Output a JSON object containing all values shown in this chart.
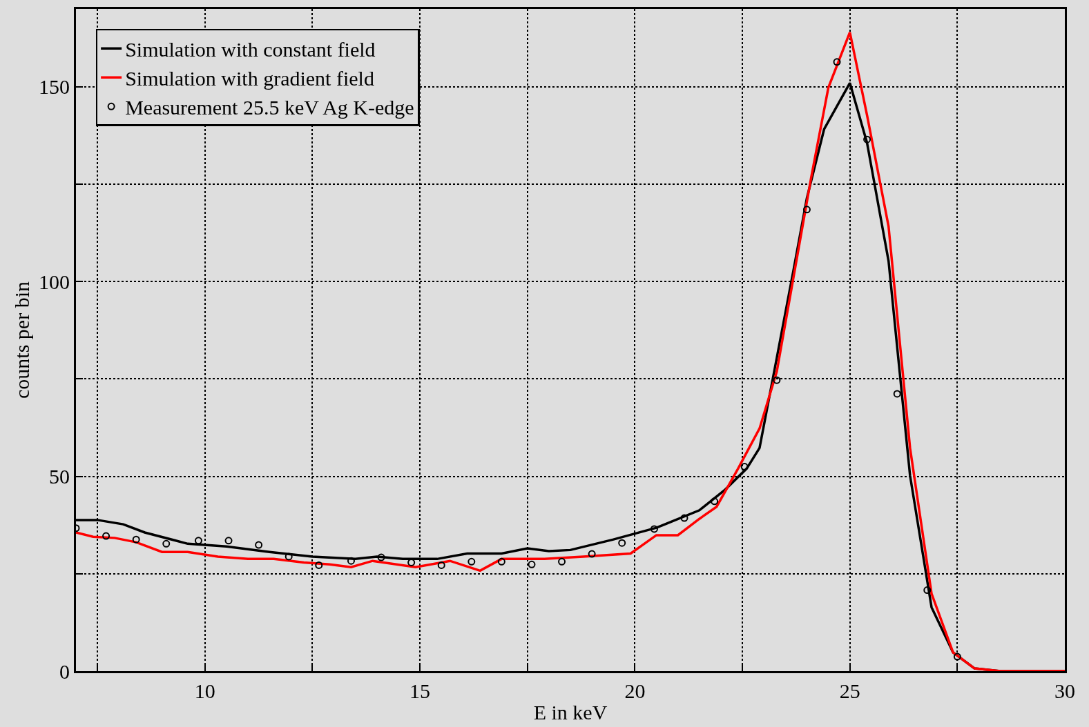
{
  "chart_data": {
    "type": "line",
    "xlabel": "E in keV",
    "ylabel": "counts per bin",
    "xlim": [
      7,
      30
    ],
    "ylim": [
      0,
      170
    ],
    "xticks": [
      {
        "value": 7.5,
        "label": null
      },
      10,
      {
        "value": 12.5,
        "label": null
      },
      15,
      {
        "value": 17.5,
        "label": null
      },
      20,
      {
        "value": 22.5,
        "label": null
      },
      25,
      {
        "value": 27.5,
        "label": null
      },
      30
    ],
    "yticks": [
      0,
      {
        "value": 25,
        "label": null
      },
      50,
      {
        "value": 75,
        "label": null
      },
      100,
      {
        "value": 125,
        "label": null
      },
      150
    ],
    "grid": true,
    "legend": "top left",
    "series": [
      {
        "name": "Simulation with constant field",
        "color": "#000000",
        "x": [
          7.0,
          7.5,
          8.1,
          8.6,
          9.6,
          10.5,
          11.5,
          12.5,
          13.5,
          14.0,
          14.6,
          15.4,
          16.1,
          16.9,
          17.5,
          18.0,
          18.5,
          19.5,
          20.5,
          21.5,
          22.1,
          22.6,
          22.9,
          23.3,
          23.7,
          24.0,
          24.4,
          25.0,
          25.4,
          25.9,
          26.4,
          26.9,
          27.4,
          27.9,
          28.5,
          30.0
        ],
        "values": [
          38.8,
          38.8,
          37.7,
          35.6,
          32.7,
          32.0,
          30.6,
          29.4,
          28.8,
          29.4,
          28.8,
          28.8,
          30.2,
          30.2,
          31.5,
          30.8,
          31.1,
          33.8,
          36.8,
          41.3,
          46.6,
          52.0,
          57.3,
          80.4,
          103.6,
          121.4,
          139.1,
          151.0,
          135.6,
          105.3,
          50.2,
          16.4,
          4.8,
          0.7,
          0,
          0
        ]
      },
      {
        "name": "Simulation with gradient field",
        "color": "#ff0000",
        "x": [
          7.0,
          7.4,
          7.9,
          8.4,
          9.0,
          9.6,
          10.3,
          11.0,
          11.6,
          12.3,
          12.9,
          13.4,
          13.9,
          14.9,
          15.7,
          16.4,
          16.9,
          17.9,
          18.8,
          19.9,
          20.5,
          21.0,
          21.5,
          21.9,
          22.4,
          22.9,
          23.3,
          23.7,
          24.1,
          24.5,
          25.0,
          25.4,
          25.9,
          26.4,
          26.9,
          27.4,
          27.9,
          28.5,
          30.0
        ],
        "values": [
          35.6,
          34.5,
          34.2,
          33.1,
          30.6,
          30.6,
          29.4,
          28.8,
          28.8,
          27.9,
          27.4,
          26.7,
          28.3,
          26.7,
          28.3,
          25.8,
          28.8,
          28.8,
          29.4,
          30.2,
          34.9,
          34.9,
          39.1,
          42.2,
          52.0,
          62.3,
          76.9,
          101.8,
          126.7,
          149.8,
          164.0,
          142.7,
          114.2,
          57.3,
          19.9,
          4.8,
          0.7,
          0,
          0
        ]
      },
      {
        "name": "Measurement 25.5 keV Ag K-edge",
        "color": "#000000",
        "type": "scatter",
        "marker": "circle",
        "x": [
          7.0,
          7.7,
          8.4,
          9.1,
          9.85,
          10.55,
          11.25,
          11.95,
          12.65,
          13.4,
          14.1,
          14.8,
          15.5,
          16.2,
          16.9,
          17.6,
          18.3,
          19.0,
          19.7,
          20.45,
          21.15,
          21.85,
          22.55,
          23.3,
          24.0,
          24.7,
          25.4,
          26.1,
          26.8,
          27.5
        ],
        "values": [
          36.7,
          34.7,
          33.8,
          32.7,
          33.5,
          33.5,
          32.4,
          29.4,
          27.2,
          28.3,
          29.2,
          27.9,
          27.2,
          28.1,
          28.1,
          27.4,
          28.1,
          30.1,
          32.9,
          36.5,
          39.3,
          43.6,
          52.5,
          74.7,
          118.5,
          156.4,
          136.5,
          71.2,
          20.8,
          3.7
        ]
      }
    ]
  }
}
